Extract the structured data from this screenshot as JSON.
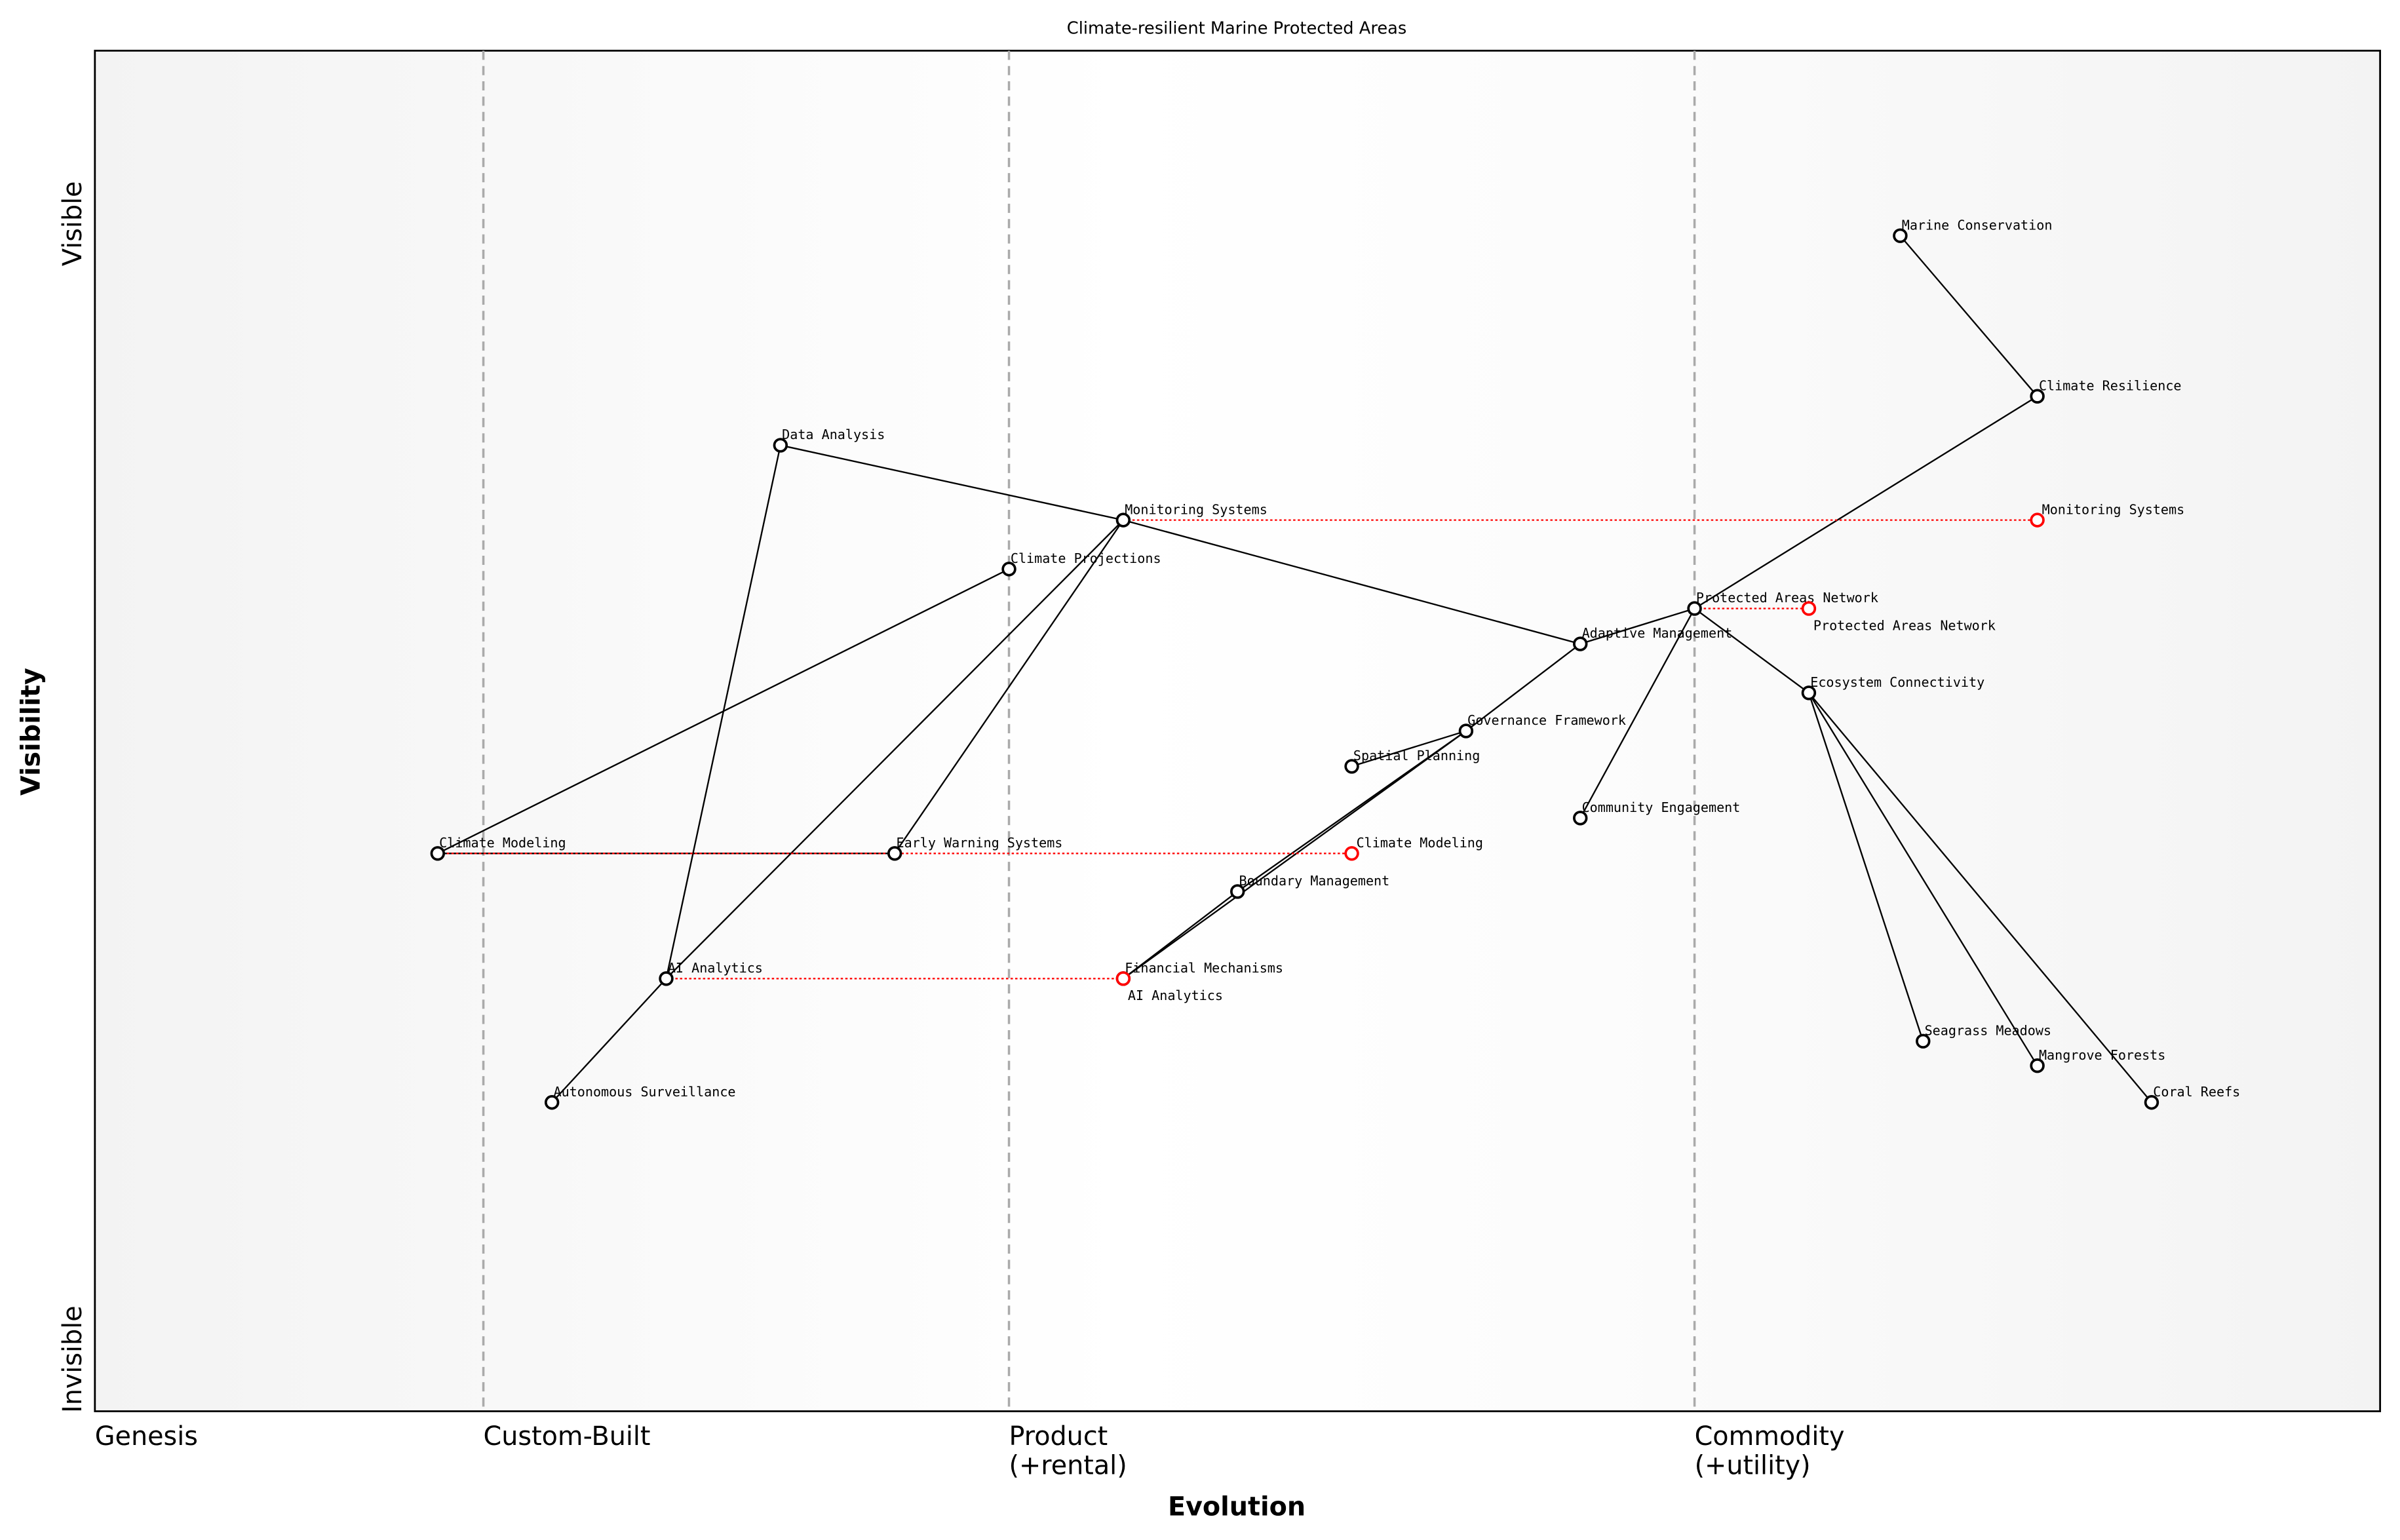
{
  "title": "Climate-resilient Marine Protected Areas",
  "x_axis": {
    "label": "Evolution",
    "stages": [
      {
        "name": "Genesis",
        "at": 0.0
      },
      {
        "name": "Custom-Built",
        "at": 0.17
      },
      {
        "name": "Product\n(+rental)",
        "at": 0.4
      },
      {
        "name": "Commodity\n(+utility)",
        "at": 0.7
      }
    ]
  },
  "y_axis": {
    "label": "Visibility",
    "top": "Visible",
    "bottom": "Invisible"
  },
  "colors": {
    "node": "#000000",
    "evolved": "#ff0000",
    "grid": "#aaaaaa"
  },
  "components": [
    {
      "id": "mc",
      "name": "Marine Conservation",
      "evolution": 0.79,
      "visibility": 0.864
    },
    {
      "id": "cr",
      "name": "Climate Resilience",
      "evolution": 0.85,
      "visibility": 0.746
    },
    {
      "id": "ms",
      "name": "Monitoring Systems",
      "evolution": 0.45,
      "visibility": 0.655
    },
    {
      "id": "da",
      "name": "Data Analysis",
      "evolution": 0.3,
      "visibility": 0.71
    },
    {
      "id": "cp",
      "name": "Climate Projections",
      "evolution": 0.4,
      "visibility": 0.619
    },
    {
      "id": "pan",
      "name": "Protected Areas Network",
      "evolution": 0.7,
      "visibility": 0.59
    },
    {
      "id": "am",
      "name": "Adaptive Management",
      "evolution": 0.65,
      "visibility": 0.564
    },
    {
      "id": "ec",
      "name": "Ecosystem Connectivity",
      "evolution": 0.75,
      "visibility": 0.528
    },
    {
      "id": "gf",
      "name": "Governance Framework",
      "evolution": 0.6,
      "visibility": 0.5
    },
    {
      "id": "sp",
      "name": "Spatial Planning",
      "evolution": 0.55,
      "visibility": 0.474
    },
    {
      "id": "ce",
      "name": "Community Engagement",
      "evolution": 0.65,
      "visibility": 0.436
    },
    {
      "id": "cm",
      "name": "Climate Modeling",
      "evolution": 0.15,
      "visibility": 0.41
    },
    {
      "id": "ews",
      "name": "Early Warning Systems",
      "evolution": 0.35,
      "visibility": 0.41
    },
    {
      "id": "bm",
      "name": "Boundary Management",
      "evolution": 0.5,
      "visibility": 0.382
    },
    {
      "id": "ai",
      "name": "AI Analytics",
      "evolution": 0.25,
      "visibility": 0.318
    },
    {
      "id": "fm",
      "name": "Financial Mechanisms",
      "evolution": 0.45,
      "visibility": 0.318
    },
    {
      "id": "as",
      "name": "Autonomous Surveillance",
      "evolution": 0.2,
      "visibility": 0.227
    },
    {
      "id": "sm",
      "name": "Seagrass Meadows",
      "evolution": 0.8,
      "visibility": 0.272
    },
    {
      "id": "mf",
      "name": "Mangrove Forests",
      "evolution": 0.85,
      "visibility": 0.254
    },
    {
      "id": "cor",
      "name": "Coral Reefs",
      "evolution": 0.9,
      "visibility": 0.227
    }
  ],
  "links": [
    [
      "mc",
      "cr"
    ],
    [
      "cr",
      "pan"
    ],
    [
      "pan",
      "ec"
    ],
    [
      "pan",
      "am"
    ],
    [
      "pan",
      "ce"
    ],
    [
      "ec",
      "sm"
    ],
    [
      "ec",
      "mf"
    ],
    [
      "ec",
      "cor"
    ],
    [
      "am",
      "ms"
    ],
    [
      "am",
      "gf"
    ],
    [
      "gf",
      "sp"
    ],
    [
      "gf",
      "bm"
    ],
    [
      "gf",
      "fm"
    ],
    [
      "bm",
      "fm"
    ],
    [
      "ms",
      "da"
    ],
    [
      "ms",
      "ai"
    ],
    [
      "ms",
      "ews"
    ],
    [
      "da",
      "ai"
    ],
    [
      "ai",
      "as"
    ],
    [
      "cp",
      "cm"
    ],
    [
      "cm",
      "ews"
    ]
  ],
  "evolutions": [
    {
      "from": "ms",
      "name": "Monitoring Systems",
      "to_evolution": 0.85
    },
    {
      "from": "pan",
      "name": "Protected Areas Network",
      "to_evolution": 0.75
    },
    {
      "from": "cm",
      "name": "Climate Modeling",
      "to_evolution": 0.55
    },
    {
      "from": "ai",
      "name": "AI Analytics",
      "to_evolution": 0.45
    }
  ]
}
